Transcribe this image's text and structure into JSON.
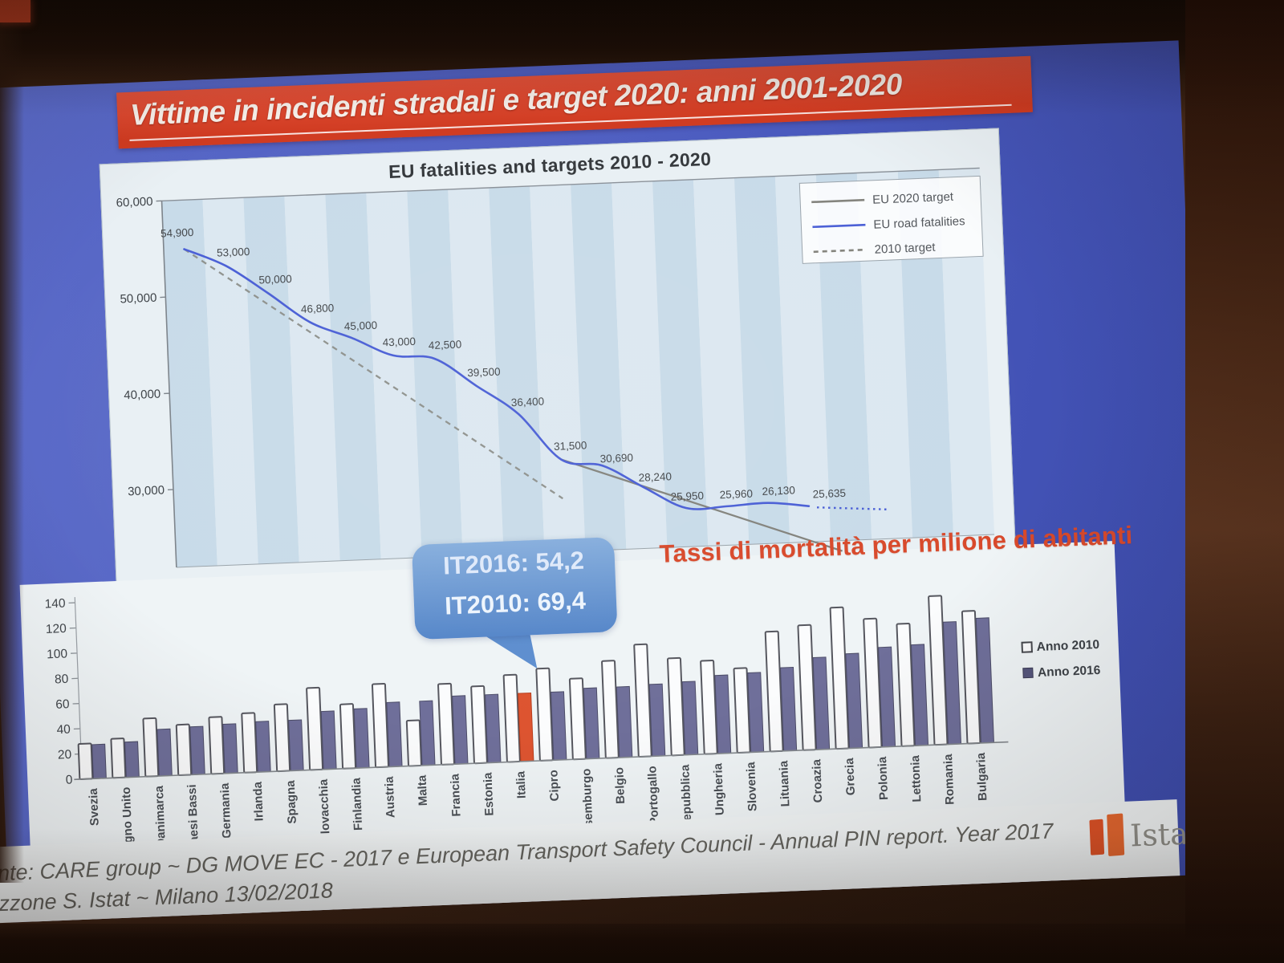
{
  "slide": {
    "title": "Vittime in incidenti stradali e target 2020: anni 2001-2020",
    "callout": {
      "line1": "IT2016: 54,2",
      "line2": "IT2010: 69,4"
    },
    "source": {
      "line1": "nte: CARE group ~ DG MOVE EC - 2017  e European Transport Safety Council - Annual PIN report. Year 2017",
      "line2": "zzone S. Istat ~  Milano 13/02/2018"
    },
    "logo": {
      "text": "Istat"
    }
  },
  "colors": {
    "banner_red": "#d03b21",
    "slide_blue": "#4c5cc0",
    "line_blue": "#4a5fd6",
    "target_gray": "#83837d",
    "dashed_gray": "#8f928e",
    "bar_fill": "#6f6f9a",
    "bar_outline_stroke": "#56575f",
    "highlight_orange": "#dd5430",
    "title_red": "#d8492b"
  },
  "chart_data": [
    {
      "type": "line",
      "title": "EU fatalities and targets 2010 - 2020",
      "x_domain": [
        2001,
        2020
      ],
      "ylim": [
        24000,
        60000
      ],
      "yticks": [
        {
          "value": 60000,
          "label": "60,000"
        },
        {
          "value": 50000,
          "label": "50,000"
        },
        {
          "value": 40000,
          "label": "40,000"
        },
        {
          "value": 30000,
          "label": "30,000"
        }
      ],
      "grid": "vertical-stripes",
      "legend_position": "top-right",
      "series": [
        {
          "name": "EU road fatalities",
          "x": [
            2001,
            2002,
            2003,
            2004,
            2005,
            2006,
            2007,
            2008,
            2009,
            2010,
            2011,
            2012,
            2013,
            2014,
            2015,
            2016
          ],
          "values": [
            54900,
            53000,
            50000,
            46800,
            45000,
            43000,
            42500,
            39500,
            36400,
            31500,
            30690,
            28240,
            25950,
            25960,
            26130,
            25635
          ],
          "labels": [
            "54,900",
            "53,000",
            "50,000",
            "46,800",
            "45,000",
            "43,000",
            "42,500",
            "39,500",
            "36,400",
            "31,500",
            "30,690",
            "28,240",
            "25,950",
            "25,960",
            "26,130",
            "25,635"
          ],
          "projection_dots_after_last": true
        }
      ],
      "target_lines": [
        {
          "name": "EU 2020 target",
          "from": [
            2010,
            31500
          ],
          "to": [
            2020,
            15750
          ],
          "style": "solid"
        },
        {
          "name": "2010 target",
          "from": [
            2001,
            54900
          ],
          "to": [
            2010,
            27450
          ],
          "style": "dashed"
        }
      ],
      "legend": [
        {
          "label": "EU 2020 target",
          "sample": "solid-gray"
        },
        {
          "label": "EU road fatalities",
          "sample": "solid-blue"
        },
        {
          "label": "2010 target",
          "sample": "dashed-gray"
        }
      ],
      "label_offsets": {
        "0": [
          -8,
          -16
        ],
        "1": [
          10,
          -12
        ],
        "2": [
          10,
          -12
        ],
        "3": [
          10,
          -12
        ],
        "4": [
          12,
          -10
        ],
        "5": [
          8,
          -12
        ],
        "6": [
          14,
          -12
        ],
        "7": [
          10,
          -12
        ],
        "8": [
          12,
          -10
        ],
        "9": [
          12,
          -12
        ],
        "10": [
          18,
          -4
        ],
        "11": [
          14,
          -8
        ],
        "12": [
          2,
          -10
        ],
        "13": [
          12,
          -10
        ],
        "14": [
          14,
          -10
        ],
        "15": [
          26,
          -10
        ]
      }
    },
    {
      "type": "bar",
      "title": "Tassi di mortalità per milione di abitanti",
      "ylim": [
        0,
        140
      ],
      "yticks": [
        0,
        20,
        40,
        60,
        80,
        100,
        120,
        140
      ],
      "categories": [
        "Svezia",
        "Regno Unito",
        "Danimarca",
        "Paesi Bassi",
        "Germania",
        "Irlanda",
        "Spagna",
        "Slovacchia",
        "Finlandia",
        "Austria",
        "Malta",
        "Francia",
        "Estonia",
        "Italia",
        "Cipro",
        "Lussemburgo",
        "Belgio",
        "Portogallo",
        "Repubblica",
        "Ungheria",
        "Slovenia",
        "Lituania",
        "Croazia",
        "Grecia",
        "Polonia",
        "Lettonia",
        "Romania",
        "Bulgaria"
      ],
      "series": [
        {
          "name": "Anno 2010",
          "style": "outline",
          "values": [
            28,
            31,
            46,
            40,
            45,
            47,
            53,
            65,
            51,
            66,
            36,
            64,
            61,
            69,
            73,
            64,
            77,
            89,
            77,
            74,
            67,
            95,
            99,
            112,
            102,
            97,
            118,
            105
          ]
        },
        {
          "name": "Anno 2016",
          "style": "filled",
          "values": [
            27,
            28,
            37,
            38,
            39,
            40,
            40,
            46,
            47,
            51,
            51,
            54,
            54,
            54,
            54,
            56,
            56,
            57,
            58,
            62,
            63,
            66,
            73,
            75,
            79,
            80,
            97,
            99
          ]
        }
      ],
      "highlight": {
        "category": "Italia",
        "series": "Anno 2016"
      },
      "legend": [
        "Anno 2010",
        "Anno 2016"
      ],
      "legend_position": "right"
    }
  ]
}
